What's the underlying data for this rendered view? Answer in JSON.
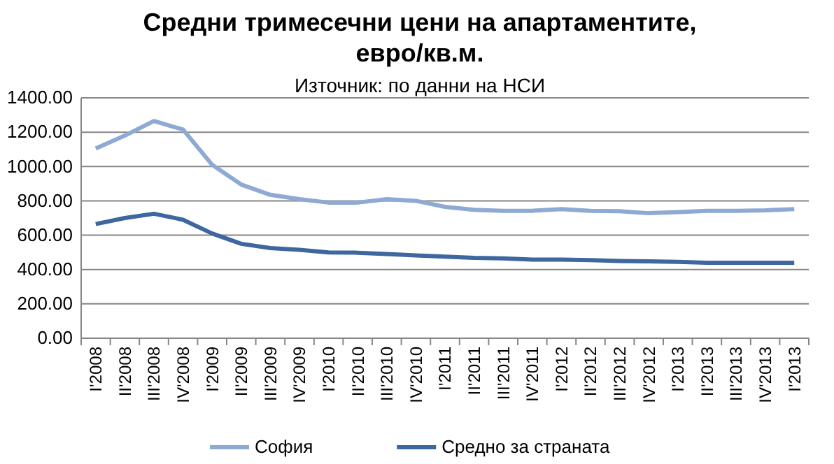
{
  "chart_data": {
    "type": "line",
    "title": "Средни тримесечни цени на апартаментите, евро/кв.м.",
    "subtitle": "Източник: по данни на НСИ",
    "categories": [
      "I'2008",
      "II'2008",
      "III'2008",
      "IV'2008",
      "I'2009",
      "II'2009",
      "III'2009",
      "IV'2009",
      "I'2010",
      "II'2010",
      "III'2010",
      "IV'2010",
      "I'2011",
      "II'2011",
      "III'2011",
      "IV'2011",
      "I'2012",
      "II'2012",
      "III'2012",
      "IV'2012",
      "I'2013",
      "II'2013",
      "III'2013",
      "IV'2013",
      "I'2013"
    ],
    "series": [
      {
        "name": "София",
        "color": "#8eaad4",
        "values": [
          1105,
          1180,
          1265,
          1215,
          1010,
          895,
          835,
          810,
          790,
          790,
          810,
          800,
          765,
          748,
          742,
          742,
          752,
          742,
          740,
          728,
          735,
          742,
          742,
          745,
          752
        ]
      },
      {
        "name": "Средно за страната",
        "color": "#3e679f",
        "values": [
          665,
          700,
          725,
          690,
          610,
          550,
          525,
          515,
          500,
          498,
          490,
          482,
          475,
          468,
          465,
          458,
          458,
          455,
          450,
          448,
          445,
          440,
          440,
          440,
          440
        ]
      }
    ],
    "ylim": [
      0,
      1400
    ],
    "yticks": [
      {
        "value": 0,
        "label": "0.00"
      },
      {
        "value": 200,
        "label": "200.00"
      },
      {
        "value": 400,
        "label": "400.00"
      },
      {
        "value": 600,
        "label": "600.00"
      },
      {
        "value": 800,
        "label": "800.00"
      },
      {
        "value": 1000,
        "label": "1000.00"
      },
      {
        "value": 1200,
        "label": "1200.00"
      },
      {
        "value": 1400,
        "label": "1400.00"
      }
    ],
    "grid": "y",
    "legend": "bottom",
    "marker": "none",
    "line_style": "solid"
  }
}
